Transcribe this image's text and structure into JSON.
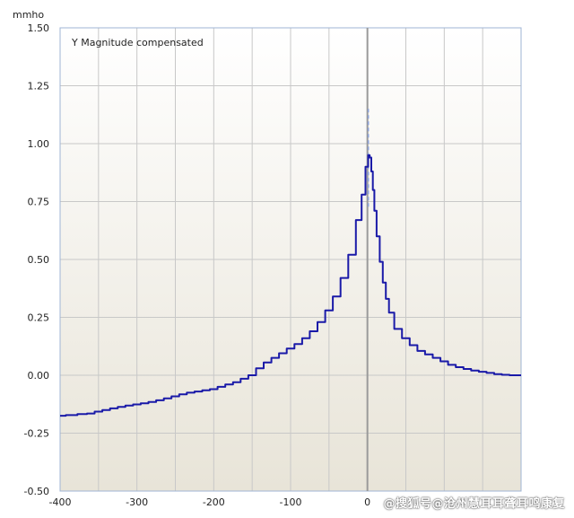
{
  "chart_data": {
    "type": "line",
    "ylabel": "mmho",
    "xlim": [
      -400,
      200
    ],
    "ylim": [
      -0.5,
      1.5
    ],
    "xticks": [
      -400,
      -300,
      -200,
      -100,
      0
    ],
    "yticks": [
      -0.5,
      -0.25,
      0.0,
      0.25,
      0.5,
      0.75,
      1.0,
      1.25,
      1.5
    ],
    "ytick_labels": [
      "-0.50",
      "-0.25",
      "0.00",
      "0.25",
      "0.50",
      "0.75",
      "1.00",
      "1.25",
      "1.50"
    ],
    "xtick_labels": [
      "-400",
      "-300",
      "-200",
      "-100",
      "0"
    ],
    "grid": true,
    "legend_position": "top-left",
    "series": [
      {
        "name": "Y  Magnitude compensated",
        "color": "#1a1aa8",
        "x": [
          -400,
          -385,
          -370,
          -360,
          -350,
          -340,
          -330,
          -320,
          -310,
          -300,
          -290,
          -280,
          -270,
          -260,
          -250,
          -240,
          -230,
          -220,
          -210,
          -200,
          -190,
          -180,
          -170,
          -160,
          -150,
          -140,
          -130,
          -120,
          -110,
          -100,
          -90,
          -80,
          -70,
          -60,
          -50,
          -40,
          -30,
          -20,
          -10,
          -5,
          0,
          2,
          4,
          6,
          8,
          10,
          14,
          18,
          22,
          26,
          30,
          40,
          50,
          60,
          70,
          80,
          90,
          100,
          110,
          120,
          130,
          140,
          150,
          160,
          170,
          180,
          190,
          200
        ],
        "y": [
          -0.175,
          -0.172,
          -0.168,
          -0.165,
          -0.157,
          -0.15,
          -0.143,
          -0.137,
          -0.131,
          -0.126,
          -0.121,
          -0.115,
          -0.108,
          -0.1,
          -0.091,
          -0.082,
          -0.075,
          -0.07,
          -0.065,
          -0.06,
          -0.05,
          -0.04,
          -0.03,
          -0.015,
          0.0,
          0.03,
          0.055,
          0.075,
          0.095,
          0.115,
          0.135,
          0.16,
          0.19,
          0.23,
          0.28,
          0.34,
          0.42,
          0.52,
          0.67,
          0.78,
          0.9,
          0.95,
          0.94,
          0.88,
          0.8,
          0.71,
          0.6,
          0.49,
          0.4,
          0.33,
          0.27,
          0.2,
          0.16,
          0.13,
          0.105,
          0.09,
          0.075,
          0.06,
          0.045,
          0.035,
          0.027,
          0.02,
          0.015,
          0.01,
          0.005,
          0.002,
          0.0,
          0.0
        ]
      }
    ],
    "marker_line": {
      "x": 0,
      "color": "#9a9a9a"
    },
    "dashed_trace": {
      "color": "#8aa0d8",
      "x": 0,
      "y_top": 1.15,
      "y_bottom": 0.72
    },
    "plot_background_top": "#ffffff",
    "plot_background_bottom": "#e8e4d8",
    "grid_color": "#c8c8c8",
    "axis_color": "#9fb4d4"
  },
  "watermark": "@搜狐号@沧州慧耳耳聋耳鸣康复"
}
